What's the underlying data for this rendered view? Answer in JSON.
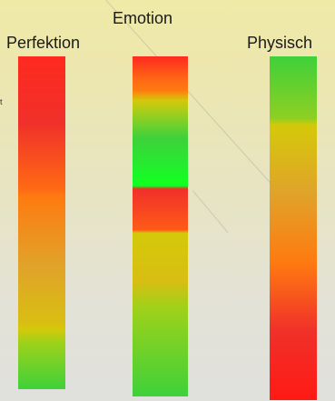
{
  "labels": {
    "emotion": "Emotion",
    "perfektion": "Perfektion",
    "physisch": "Physisch"
  },
  "fragment_text": "t",
  "colors": {
    "red": "#ff2a1f",
    "orange": "#ff7a10",
    "amber": "#e0a32a",
    "yellow": "#d4c90a",
    "green": "#3ed13a",
    "bright_green": "#12ff22",
    "background_top": "#efeaa6",
    "background_bottom": "#e0e0dd"
  }
}
